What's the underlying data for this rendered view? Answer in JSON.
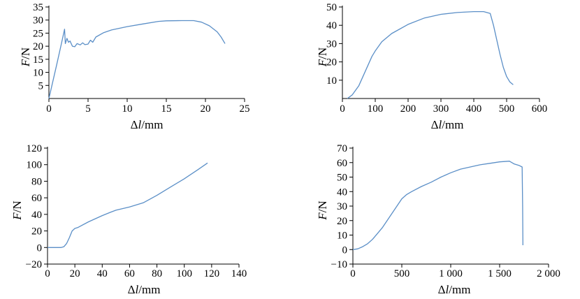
{
  "chart_data": [
    {
      "type": "line",
      "xlabel": "Δl/mm",
      "ylabel": "F/N",
      "xlim": [
        0,
        25
      ],
      "ylim": [
        0,
        35
      ],
      "xticks": [
        0,
        5,
        10,
        15,
        20,
        25
      ],
      "yticks": [
        5,
        10,
        15,
        20,
        25,
        30,
        35
      ],
      "x": [
        0,
        1.0,
        1.6,
        2.0,
        2.1,
        2.3,
        2.5,
        2.7,
        3.0,
        3.3,
        3.6,
        4.0,
        4.3,
        4.6,
        5.0,
        5.3,
        5.6,
        6.0,
        7.0,
        8.0,
        10.0,
        12.0,
        14.0,
        15.0,
        17.0,
        18.5,
        19.5,
        20.5,
        21.5,
        22.0,
        22.5
      ],
      "series": [
        {
          "values": [
            0,
            13,
            21,
            26.5,
            21,
            23,
            21.5,
            22,
            20,
            19.8,
            21,
            20.5,
            21.3,
            20.6,
            20.8,
            22.3,
            21.5,
            23.5,
            25.2,
            26.2,
            27.5,
            28.5,
            29.5,
            29.7,
            29.8,
            29.8,
            29.2,
            27.8,
            25.5,
            23.5,
            21.0
          ]
        }
      ]
    },
    {
      "type": "line",
      "xlabel": "Δl/mm",
      "ylabel": "F/N",
      "xlim": [
        0,
        600
      ],
      "ylim": [
        0,
        50
      ],
      "xticks": [
        0,
        100,
        200,
        300,
        400,
        500,
        600
      ],
      "yticks": [
        10,
        20,
        30,
        40,
        50
      ],
      "x": [
        15,
        30,
        50,
        70,
        90,
        100,
        120,
        150,
        200,
        250,
        300,
        350,
        400,
        430,
        450,
        460,
        470,
        480,
        490,
        500,
        510,
        520
      ],
      "series": [
        {
          "values": [
            0,
            2,
            7,
            15,
            23,
            26,
            31,
            35.5,
            40.5,
            44,
            46,
            47,
            47.5,
            47.5,
            46.5,
            40,
            32,
            24,
            17,
            12,
            9,
            7.5
          ]
        }
      ]
    },
    {
      "type": "line",
      "xlabel": "Δl/mm",
      "ylabel": "F/N",
      "xlim": [
        0,
        140
      ],
      "ylim": [
        -20,
        120
      ],
      "xticks": [
        0,
        20,
        40,
        60,
        80,
        100,
        120,
        140
      ],
      "yticks": [
        -20,
        0,
        20,
        40,
        60,
        80,
        100,
        120
      ],
      "x": [
        0,
        10,
        12,
        14,
        16,
        18,
        20,
        22,
        30,
        40,
        46,
        50,
        60,
        70,
        80,
        90,
        100,
        110,
        117
      ],
      "series": [
        {
          "values": [
            0,
            0,
            1,
            5,
            12,
            20,
            23,
            24,
            31,
            38.5,
            42.5,
            45,
            49,
            54,
            63,
            73,
            83,
            94,
            102
          ]
        }
      ]
    },
    {
      "type": "line",
      "xlabel": "Δl/mm",
      "ylabel": "F/N",
      "xlim": [
        0,
        2000
      ],
      "ylim": [
        -10,
        70
      ],
      "xticks": [
        0,
        500,
        1000,
        1500,
        2000
      ],
      "xtick_labels": [
        "0",
        "500",
        "1 000",
        "1 500",
        "2 000"
      ],
      "yticks": [
        -10,
        0,
        10,
        20,
        30,
        40,
        50,
        60,
        70
      ],
      "x": [
        0,
        50,
        100,
        150,
        200,
        250,
        300,
        350,
        400,
        450,
        500,
        550,
        600,
        700,
        800,
        900,
        1000,
        1100,
        1200,
        1300,
        1400,
        1500,
        1600,
        1650,
        1700,
        1730,
        1735,
        1738
      ],
      "series": [
        {
          "values": [
            0,
            0.5,
            2,
            4,
            7,
            11,
            15,
            20,
            25,
            30,
            35,
            38,
            40,
            43.5,
            46.5,
            50,
            53,
            55.5,
            57,
            58.5,
            59.5,
            60.5,
            61,
            59,
            58,
            57,
            30,
            3
          ]
        }
      ]
    }
  ]
}
